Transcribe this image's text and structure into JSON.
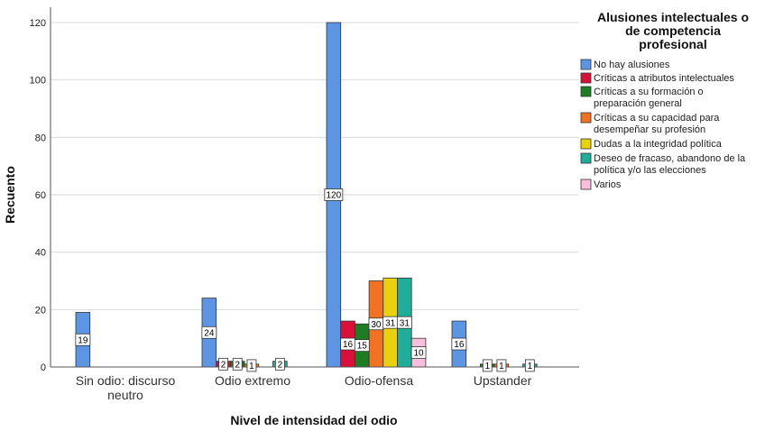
{
  "chart_data": {
    "type": "bar",
    "xlabel": "Nivel de intensidad del odio",
    "ylabel": "Recuento",
    "ylim": [
      0,
      125
    ],
    "yticks": [
      0,
      20,
      40,
      60,
      80,
      100,
      120
    ],
    "grid": "horizontal",
    "legend_position": "right",
    "legend_title_lines": [
      "Alusiones intelectuales o",
      "de competencia",
      "profesional"
    ],
    "categories": [
      [
        "Sin odio: discurso",
        "neutro"
      ],
      [
        "Odio extremo"
      ],
      [
        "Odio-ofensa"
      ],
      [
        "Upstander"
      ]
    ],
    "series": [
      {
        "name_lines": [
          "No hay alusiones"
        ],
        "color": "#5b95e4",
        "values": [
          19,
          24,
          120,
          16
        ]
      },
      {
        "name_lines": [
          "Críticas a atributos intelectuales"
        ],
        "color": "#d8113a",
        "values": [
          0,
          2,
          16,
          0
        ]
      },
      {
        "name_lines": [
          "Críticas a su formación o",
          "preparación general"
        ],
        "color": "#1e7c25",
        "values": [
          0,
          2,
          15,
          1
        ]
      },
      {
        "name_lines": [
          "Críticas a su capacidad para",
          "desempeñar su profesión"
        ],
        "color": "#f07222",
        "values": [
          0,
          1,
          30,
          1
        ]
      },
      {
        "name_lines": [
          "Dudas a la integridad política"
        ],
        "color": "#e9d20c",
        "values": [
          0,
          0,
          31,
          0
        ]
      },
      {
        "name_lines": [
          "Deseo de fracaso, abandono de la",
          "política y/o las elecciones"
        ],
        "color": "#1fae9a",
        "values": [
          0,
          2,
          31,
          1
        ]
      },
      {
        "name_lines": [
          "Varios"
        ],
        "color": "#f7bfdc",
        "values": [
          0,
          0,
          10,
          0
        ]
      }
    ]
  }
}
